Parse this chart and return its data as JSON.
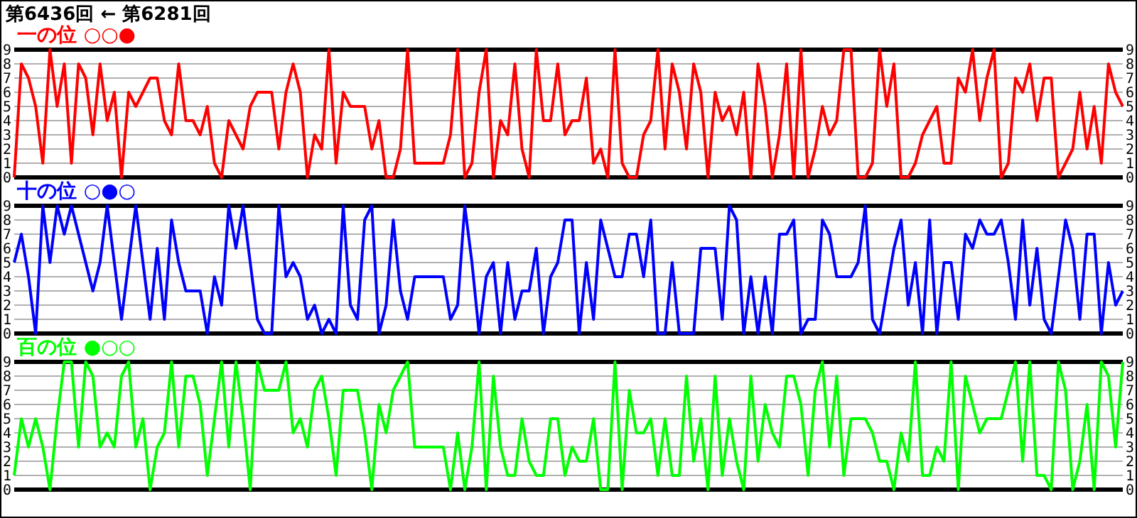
{
  "chart_data": [
    {
      "type": "line",
      "title": "一の位 ○○●",
      "annotations": [
        "第6436回 ← 第6281回"
      ],
      "categories": [
        null,
        null,
        null,
        null,
        null,
        null,
        null,
        null,
        null,
        null,
        null,
        null,
        null,
        null,
        null,
        null,
        null,
        null,
        null,
        null,
        null,
        null,
        null,
        null,
        null,
        null,
        null,
        null,
        null,
        null,
        null,
        null,
        null,
        null,
        null,
        null,
        null,
        null,
        null,
        null,
        null,
        null,
        null,
        null,
        null,
        null,
        null,
        null,
        null,
        null,
        null,
        null,
        null,
        null,
        null,
        null,
        null,
        null,
        null,
        null,
        null,
        null,
        null,
        null,
        null,
        null,
        null,
        null,
        null,
        null,
        null,
        null,
        null,
        null,
        null,
        null,
        null,
        null,
        null,
        null,
        null,
        null,
        null,
        null,
        null,
        null,
        null,
        null,
        null,
        null,
        null,
        null,
        null,
        null,
        null,
        null,
        null,
        null,
        null,
        null,
        null,
        null,
        null,
        null,
        null,
        null,
        null,
        null,
        null,
        null,
        null,
        null,
        null,
        null,
        null,
        null,
        null,
        null,
        null,
        null,
        null,
        null,
        null,
        null,
        null,
        null,
        null,
        null,
        null,
        null,
        null,
        null,
        null,
        null,
        null,
        null,
        null,
        null,
        null,
        null,
        null,
        null,
        null,
        null,
        null,
        null,
        null,
        null,
        null,
        null,
        null,
        null,
        null,
        null,
        null,
        null
      ],
      "series": [
        {
          "color": "#ff0000",
          "values": [
            0,
            8,
            7,
            5,
            1,
            9,
            5,
            8,
            1,
            8,
            7,
            3,
            8,
            4,
            6,
            0,
            6,
            5,
            6,
            7,
            7,
            4,
            3,
            8,
            4,
            4,
            3,
            5,
            1,
            0,
            4,
            3,
            2,
            5,
            6,
            6,
            6,
            2,
            6,
            8,
            6,
            0,
            3,
            2,
            9,
            1,
            6,
            5,
            5,
            5,
            2,
            4,
            0,
            0,
            2,
            9,
            1,
            1,
            1,
            1,
            1,
            3,
            9,
            0,
            1,
            6,
            9,
            0,
            4,
            3,
            8,
            2,
            0,
            9,
            4,
            4,
            8,
            3,
            4,
            4,
            7,
            1,
            2,
            0,
            9,
            1,
            0,
            0,
            3,
            4,
            9,
            2,
            8,
            6,
            2,
            8,
            6,
            0,
            6,
            4,
            5,
            3,
            6,
            0,
            8,
            5,
            0,
            3,
            8,
            0,
            9,
            0,
            2,
            5,
            3,
            4,
            9,
            9,
            0,
            0,
            1,
            9,
            5,
            8,
            0,
            0,
            1,
            3,
            4,
            5,
            1,
            1,
            7,
            6,
            9,
            4,
            7,
            9,
            0,
            1,
            7,
            6,
            8,
            4,
            7,
            7,
            0,
            1,
            2,
            6,
            2,
            5,
            1,
            8,
            6,
            5
          ]
        }
      ],
      "ylim": [
        0,
        9
      ],
      "yticks": [
        0,
        1,
        2,
        3,
        4,
        5,
        6,
        7,
        8,
        9
      ],
      "y2lim": [
        0,
        9
      ],
      "y2ticks": [
        0,
        1,
        2,
        3,
        4,
        5,
        6,
        7,
        8,
        9
      ],
      "grid": "y",
      "marker": "none",
      "line_style": "solid"
    },
    {
      "type": "line",
      "title": "十の位 ○●○",
      "categories": [
        null,
        null,
        null,
        null,
        null,
        null,
        null,
        null,
        null,
        null,
        null,
        null,
        null,
        null,
        null,
        null,
        null,
        null,
        null,
        null,
        null,
        null,
        null,
        null,
        null,
        null,
        null,
        null,
        null,
        null,
        null,
        null,
        null,
        null,
        null,
        null,
        null,
        null,
        null,
        null,
        null,
        null,
        null,
        null,
        null,
        null,
        null,
        null,
        null,
        null,
        null,
        null,
        null,
        null,
        null,
        null,
        null,
        null,
        null,
        null,
        null,
        null,
        null,
        null,
        null,
        null,
        null,
        null,
        null,
        null,
        null,
        null,
        null,
        null,
        null,
        null,
        null,
        null,
        null,
        null,
        null,
        null,
        null,
        null,
        null,
        null,
        null,
        null,
        null,
        null,
        null,
        null,
        null,
        null,
        null,
        null,
        null,
        null,
        null,
        null,
        null,
        null,
        null,
        null,
        null,
        null,
        null,
        null,
        null,
        null,
        null,
        null,
        null,
        null,
        null,
        null,
        null,
        null,
        null,
        null,
        null,
        null,
        null,
        null,
        null,
        null,
        null,
        null,
        null,
        null,
        null,
        null,
        null,
        null,
        null,
        null,
        null,
        null,
        null,
        null,
        null,
        null,
        null,
        null,
        null,
        null,
        null,
        null,
        null,
        null,
        null,
        null,
        null,
        null,
        null,
        null
      ],
      "series": [
        {
          "color": "#0000ff",
          "values": [
            5,
            7,
            4,
            0,
            9,
            5,
            9,
            7,
            9,
            7,
            5,
            3,
            5,
            9,
            5,
            1,
            5,
            9,
            5,
            1,
            6,
            1,
            8,
            5,
            3,
            3,
            3,
            0,
            4,
            2,
            9,
            6,
            9,
            5,
            1,
            0,
            0,
            9,
            4,
            5,
            4,
            1,
            2,
            0,
            1,
            0,
            9,
            2,
            1,
            8,
            9,
            0,
            2,
            8,
            3,
            1,
            4,
            4,
            4,
            4,
            4,
            1,
            2,
            9,
            5,
            0,
            4,
            5,
            0,
            5,
            1,
            3,
            3,
            6,
            0,
            4,
            5,
            8,
            8,
            0,
            5,
            1,
            8,
            6,
            4,
            4,
            7,
            7,
            4,
            8,
            0,
            0,
            5,
            0,
            0,
            0,
            6,
            6,
            6,
            1,
            9,
            8,
            0,
            4,
            0,
            4,
            0,
            7,
            7,
            8,
            0,
            1,
            1,
            8,
            7,
            4,
            4,
            4,
            5,
            9,
            1,
            0,
            3,
            6,
            8,
            2,
            5,
            0,
            8,
            0,
            5,
            5,
            1,
            7,
            6,
            8,
            7,
            7,
            8,
            5,
            1,
            8,
            2,
            6,
            1,
            0,
            4,
            8,
            6,
            1,
            7,
            7,
            0,
            5,
            2,
            3
          ]
        }
      ],
      "ylim": [
        0,
        9
      ],
      "yticks": [
        0,
        1,
        2,
        3,
        4,
        5,
        6,
        7,
        8,
        9
      ],
      "y2lim": [
        0,
        9
      ],
      "y2ticks": [
        0,
        1,
        2,
        3,
        4,
        5,
        6,
        7,
        8,
        9
      ],
      "grid": "y",
      "marker": "none",
      "line_style": "solid"
    },
    {
      "type": "line",
      "title": "百の位 ●○○",
      "categories": [
        null,
        null,
        null,
        null,
        null,
        null,
        null,
        null,
        null,
        null,
        null,
        null,
        null,
        null,
        null,
        null,
        null,
        null,
        null,
        null,
        null,
        null,
        null,
        null,
        null,
        null,
        null,
        null,
        null,
        null,
        null,
        null,
        null,
        null,
        null,
        null,
        null,
        null,
        null,
        null,
        null,
        null,
        null,
        null,
        null,
        null,
        null,
        null,
        null,
        null,
        null,
        null,
        null,
        null,
        null,
        null,
        null,
        null,
        null,
        null,
        null,
        null,
        null,
        null,
        null,
        null,
        null,
        null,
        null,
        null,
        null,
        null,
        null,
        null,
        null,
        null,
        null,
        null,
        null,
        null,
        null,
        null,
        null,
        null,
        null,
        null,
        null,
        null,
        null,
        null,
        null,
        null,
        null,
        null,
        null,
        null,
        null,
        null,
        null,
        null,
        null,
        null,
        null,
        null,
        null,
        null,
        null,
        null,
        null,
        null,
        null,
        null,
        null,
        null,
        null,
        null,
        null,
        null,
        null,
        null,
        null,
        null,
        null,
        null,
        null,
        null,
        null,
        null,
        null,
        null,
        null,
        null,
        null,
        null,
        null,
        null,
        null,
        null,
        null,
        null,
        null,
        null,
        null,
        null,
        null,
        null,
        null,
        null,
        null,
        null,
        null,
        null,
        null,
        null,
        null,
        null
      ],
      "series": [
        {
          "color": "#00ff00",
          "values": [
            1,
            5,
            3,
            5,
            3,
            0,
            5,
            9,
            9,
            3,
            9,
            8,
            3,
            4,
            3,
            8,
            9,
            3,
            5,
            0,
            3,
            4,
            9,
            3,
            8,
            8,
            6,
            1,
            5,
            9,
            3,
            9,
            5,
            0,
            9,
            7,
            7,
            7,
            9,
            4,
            5,
            3,
            7,
            8,
            5,
            1,
            7,
            7,
            7,
            4,
            0,
            6,
            4,
            7,
            8,
            9,
            3,
            3,
            3,
            3,
            3,
            0,
            4,
            0,
            3,
            9,
            0,
            8,
            3,
            1,
            1,
            5,
            2,
            1,
            1,
            5,
            5,
            1,
            3,
            2,
            2,
            5,
            0,
            0,
            9,
            0,
            7,
            4,
            4,
            5,
            1,
            5,
            1,
            1,
            8,
            2,
            5,
            0,
            8,
            1,
            5,
            2,
            0,
            8,
            2,
            6,
            4,
            3,
            8,
            8,
            6,
            1,
            7,
            9,
            3,
            8,
            1,
            5,
            5,
            5,
            4,
            2,
            2,
            0,
            4,
            2,
            9,
            1,
            1,
            3,
            2,
            9,
            0,
            8,
            6,
            4,
            5,
            5,
            5,
            7,
            9,
            2,
            9,
            1,
            1,
            0,
            9,
            7,
            0,
            2,
            6,
            0,
            9,
            8,
            3,
            9
          ]
        }
      ],
      "ylim": [
        0,
        9
      ],
      "yticks": [
        0,
        1,
        2,
        3,
        4,
        5,
        6,
        7,
        8,
        9
      ],
      "y2lim": [
        0,
        9
      ],
      "y2ticks": [
        0,
        1,
        2,
        3,
        4,
        5,
        6,
        7,
        8,
        9
      ],
      "grid": "y",
      "marker": "none",
      "line_style": "solid"
    }
  ]
}
